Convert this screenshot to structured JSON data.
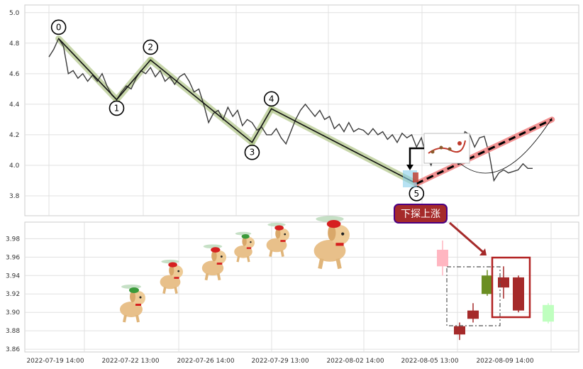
{
  "chart_data": [
    {
      "type": "line",
      "panel": "top",
      "ylim": [
        3.67,
        5.05
      ],
      "yticks": [
        "3.8",
        "4.0",
        "4.2",
        "4.4",
        "4.6",
        "4.8",
        "5.0"
      ],
      "ytick_values": [
        3.8,
        4.0,
        4.2,
        4.4,
        4.6,
        4.8,
        5.0
      ],
      "price_series": [
        [
          0,
          4.71
        ],
        [
          1,
          4.76
        ],
        [
          2,
          4.83
        ],
        [
          3,
          4.78
        ],
        [
          4,
          4.6
        ],
        [
          5,
          4.62
        ],
        [
          6,
          4.57
        ],
        [
          7,
          4.6
        ],
        [
          8,
          4.55
        ],
        [
          9,
          4.59
        ],
        [
          10,
          4.55
        ],
        [
          11,
          4.6
        ],
        [
          12,
          4.52
        ],
        [
          13,
          4.46
        ],
        [
          14,
          4.43
        ],
        [
          15,
          4.48
        ],
        [
          16,
          4.52
        ],
        [
          17,
          4.5
        ],
        [
          18,
          4.57
        ],
        [
          19,
          4.62
        ],
        [
          20,
          4.6
        ],
        [
          21,
          4.64
        ],
        [
          22,
          4.58
        ],
        [
          23,
          4.62
        ],
        [
          24,
          4.55
        ],
        [
          25,
          4.58
        ],
        [
          26,
          4.53
        ],
        [
          27,
          4.58
        ],
        [
          28,
          4.6
        ],
        [
          29,
          4.55
        ],
        [
          30,
          4.48
        ],
        [
          31,
          4.5
        ],
        [
          32,
          4.4
        ],
        [
          33,
          4.28
        ],
        [
          34,
          4.34
        ],
        [
          35,
          4.36
        ],
        [
          36,
          4.3
        ],
        [
          37,
          4.38
        ],
        [
          38,
          4.32
        ],
        [
          39,
          4.36
        ],
        [
          40,
          4.26
        ],
        [
          41,
          4.3
        ],
        [
          42,
          4.28
        ],
        [
          43,
          4.23
        ],
        [
          44,
          4.25
        ],
        [
          45,
          4.2
        ],
        [
          46,
          4.2
        ],
        [
          47,
          4.24
        ],
        [
          48,
          4.18
        ],
        [
          49,
          4.14
        ],
        [
          50,
          4.22
        ],
        [
          51,
          4.3
        ],
        [
          52,
          4.36
        ],
        [
          53,
          4.4
        ],
        [
          54,
          4.36
        ],
        [
          55,
          4.32
        ],
        [
          56,
          4.36
        ],
        [
          57,
          4.3
        ],
        [
          58,
          4.32
        ],
        [
          59,
          4.24
        ],
        [
          60,
          4.27
        ],
        [
          61,
          4.22
        ],
        [
          62,
          4.28
        ],
        [
          63,
          4.22
        ],
        [
          64,
          4.24
        ],
        [
          65,
          4.23
        ],
        [
          66,
          4.2
        ],
        [
          67,
          4.24
        ],
        [
          68,
          4.2
        ],
        [
          69,
          4.22
        ],
        [
          70,
          4.17
        ],
        [
          71,
          4.2
        ],
        [
          72,
          4.15
        ],
        [
          73,
          4.21
        ],
        [
          74,
          4.18
        ],
        [
          75,
          4.2
        ],
        [
          76,
          4.12
        ],
        [
          77,
          4.18
        ],
        [
          78,
          4.06
        ],
        [
          79,
          4.0
        ],
        [
          80,
          4.1
        ],
        [
          81,
          4.11
        ],
        [
          82,
          4.1
        ],
        [
          83,
          4.12
        ],
        [
          84,
          4.09
        ],
        [
          85,
          4.12
        ],
        [
          86,
          4.22
        ],
        [
          87,
          4.2
        ],
        [
          88,
          4.12
        ],
        [
          89,
          4.18
        ],
        [
          90,
          4.19
        ],
        [
          91,
          4.08
        ],
        [
          92,
          3.9
        ],
        [
          93,
          3.95
        ],
        [
          94,
          3.97
        ],
        [
          95,
          3.95
        ],
        [
          96,
          3.96
        ],
        [
          97,
          3.97
        ],
        [
          98,
          4.01
        ],
        [
          99,
          3.98
        ],
        [
          100,
          3.98
        ]
      ],
      "wave_points": [
        {
          "label": "0",
          "x": 2,
          "y": 4.83
        },
        {
          "label": "1",
          "x": 14,
          "y": 4.43
        },
        {
          "label": "2",
          "x": 21,
          "y": 4.69
        },
        {
          "label": "3",
          "x": 42,
          "y": 4.15
        },
        {
          "label": "4",
          "x": 46,
          "y": 4.37
        },
        {
          "label": "5",
          "x": 76,
          "y": 3.88
        }
      ],
      "forecast_line": {
        "from": [
          76,
          3.88
        ],
        "to": [
          104,
          4.3
        ]
      },
      "forecast_curve": {
        "from": [
          84,
          4.04
        ],
        "via": [
          93,
          3.86
        ],
        "to": [
          104,
          4.31
        ]
      }
    },
    {
      "type": "candlestick",
      "panel": "bottom",
      "ylim": [
        3.857,
        3.998
      ],
      "yticks": [
        "3.86",
        "3.88",
        "3.90",
        "3.92",
        "3.94",
        "3.96",
        "3.98"
      ],
      "ytick_values": [
        3.86,
        3.88,
        3.9,
        3.92,
        3.94,
        3.96,
        3.98
      ],
      "xtick_labels": [
        "2022-07-19 14:00",
        "2022-07-22 13:00",
        "2022-07-26 14:00",
        "2022-07-29 13:00",
        "2022-08-02 14:00",
        "2022-08-05 13:00",
        "2022-08-09 14:00"
      ],
      "candles": [
        {
          "open": 3.968,
          "close": 3.95,
          "high": 3.978,
          "low": 3.94,
          "color": "#ffb6c1"
        },
        {
          "open": 3.885,
          "close": 3.876,
          "high": 3.889,
          "low": 3.87,
          "color": "#a52a2a"
        },
        {
          "open": 3.893,
          "close": 3.902,
          "high": 3.91,
          "low": 3.889,
          "color": "#a52a2a"
        },
        {
          "open": 3.92,
          "close": 3.94,
          "high": 3.946,
          "low": 3.918,
          "color": "#6b8e23"
        },
        {
          "open": 3.927,
          "close": 3.938,
          "high": 3.95,
          "low": 3.915,
          "color": "#a52a2a"
        },
        {
          "open": 3.902,
          "close": 3.938,
          "high": 3.94,
          "low": 3.9,
          "color": "#a52a2a"
        },
        {
          "open": 3.908,
          "close": 3.89,
          "high": 3.91,
          "low": 3.888,
          "color": "#bfffbf"
        }
      ]
    }
  ],
  "annotation": {
    "callout_text": "下探上涨"
  }
}
